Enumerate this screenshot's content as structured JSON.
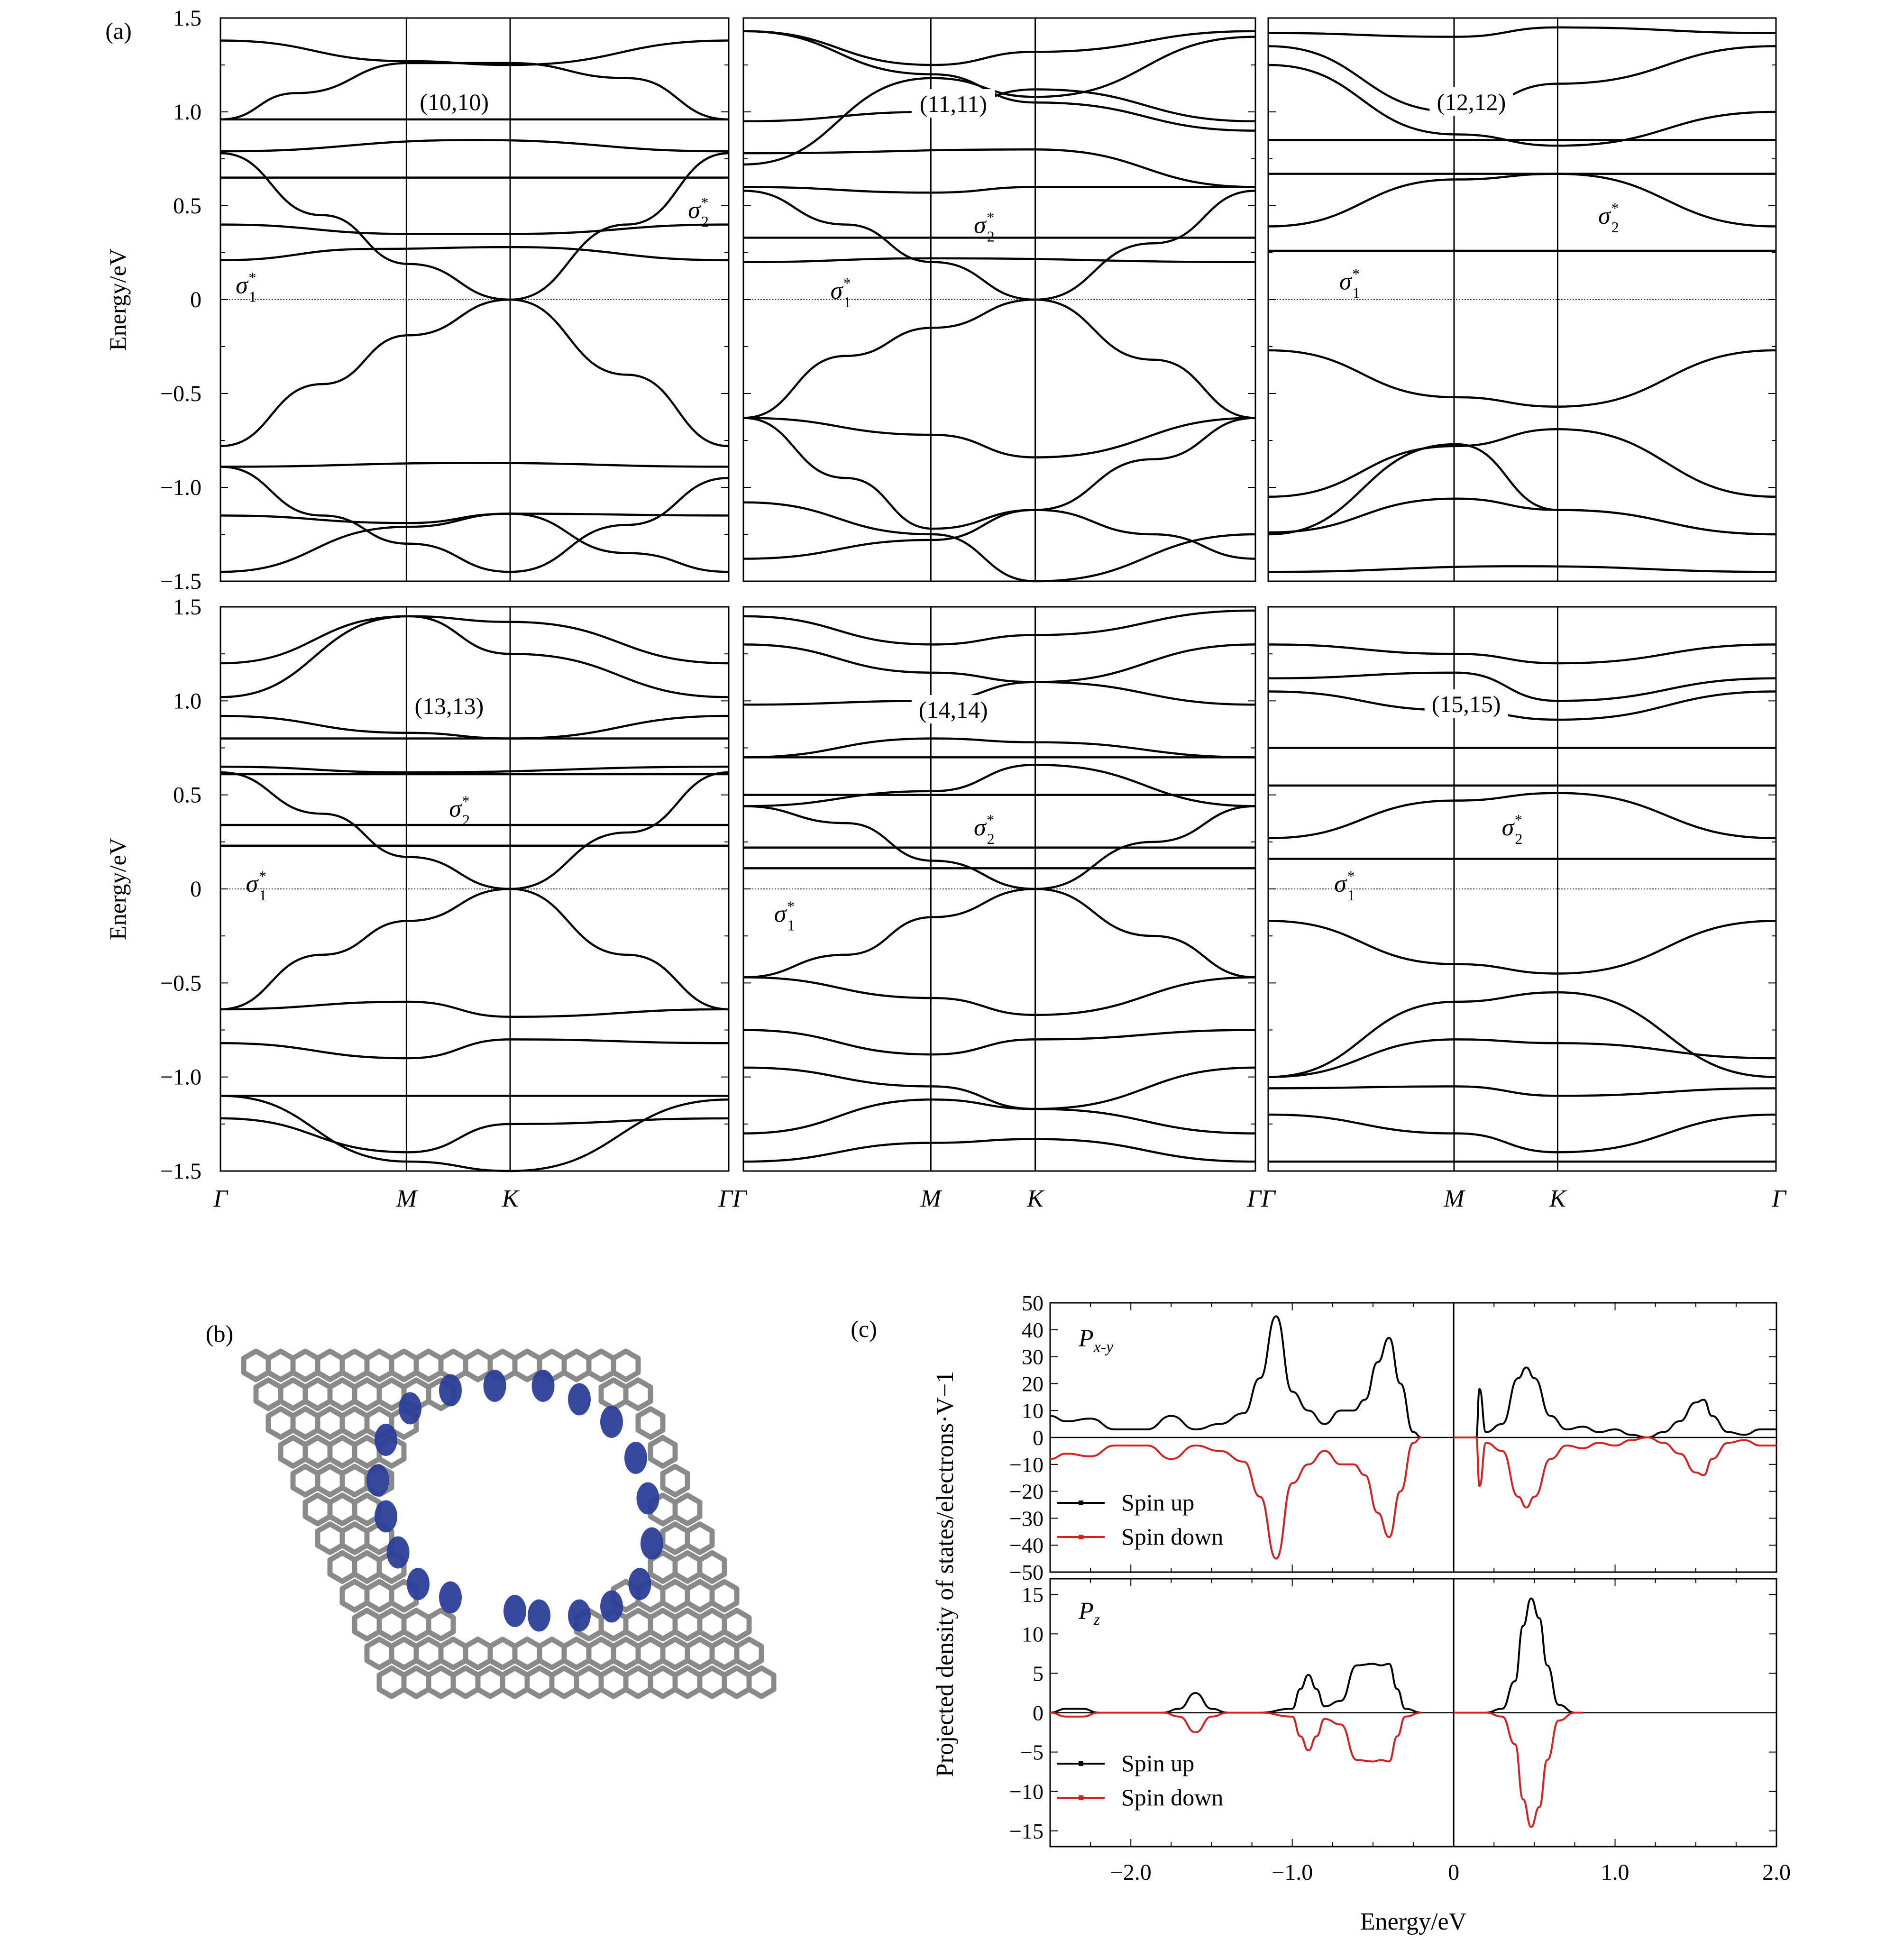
{
  "panel_a": {
    "label": "(a)",
    "ylabel": "Energy/eV",
    "y_ticks": [
      "1.5",
      "1.0",
      "0.5",
      "0",
      "−0.5",
      "−1.0",
      "−1.5"
    ],
    "k_labels": [
      "Γ",
      "M",
      "K",
      "Γ"
    ],
    "sigma1_label": "σ",
    "sigma1_sub": "1",
    "sigma2_label": "σ",
    "sigma2_sub": "2",
    "star": "*",
    "subplots": [
      {
        "label": "(10,10)"
      },
      {
        "label": "(11,11)"
      },
      {
        "label": "(12,12)"
      },
      {
        "label": "(13,13)"
      },
      {
        "label": "(14,14)"
      },
      {
        "label": "(15,15)"
      }
    ]
  },
  "panel_b": {
    "label": "(b)"
  },
  "panel_c": {
    "label": "(c)",
    "ylabel": "Projected density of states/electrons·V−1",
    "xlabel": "Energy/eV",
    "x_ticks": [
      "−2.0",
      "−1.0",
      "0",
      "1.0",
      "2.0"
    ],
    "top": {
      "title": "Px-y",
      "y_ticks": [
        "50",
        "40",
        "30",
        "20",
        "10",
        "0",
        "−10",
        "−20",
        "−30",
        "−40",
        "−50"
      ],
      "legend": [
        "Spin up",
        "Spin down"
      ]
    },
    "bottom": {
      "title": "Pz",
      "y_ticks": [
        "15",
        "10",
        "5",
        "0",
        "−5",
        "−10",
        "−15"
      ],
      "legend": [
        "Spin up",
        "Spin down"
      ]
    }
  },
  "colors": {
    "spin_up": "#000000",
    "spin_down": "#d42020",
    "orbital": "#2b3f9a"
  },
  "chart_data": [
    {
      "type": "line",
      "title": "(c) Px-y",
      "xlabel": "Energy/eV",
      "ylabel": "Projected density of states/electrons·V−1",
      "xlim": [
        -2.5,
        2.0
      ],
      "ylim": [
        -50,
        50
      ],
      "series": [
        {
          "name": "Spin up",
          "x": [
            -2.5,
            -2.4,
            -2.25,
            -2.1,
            -1.9,
            -1.75,
            -1.6,
            -1.45,
            -1.3,
            -1.2,
            -1.1,
            -1.0,
            -0.9,
            -0.8,
            -0.7,
            -0.62,
            -0.55,
            -0.47,
            -0.4,
            -0.33,
            -0.25,
            -0.2
          ],
          "values": [
            8,
            6,
            7,
            3,
            3,
            8,
            3,
            5,
            9,
            22,
            45,
            17,
            10,
            5,
            10,
            10,
            14,
            28,
            37,
            20,
            2,
            0
          ]
        },
        {
          "name": "Spin down",
          "x": [
            -2.5,
            -2.4,
            -2.25,
            -2.1,
            -1.9,
            -1.75,
            -1.6,
            -1.45,
            -1.3,
            -1.2,
            -1.1,
            -1.0,
            -0.9,
            -0.8,
            -0.7,
            -0.62,
            -0.55,
            -0.47,
            -0.4,
            -0.33,
            -0.25,
            -0.2
          ],
          "values": [
            -8,
            -6,
            -7,
            -3,
            -3,
            -8,
            -3,
            -5,
            -9,
            -22,
            -45,
            -17,
            -10,
            -5,
            -10,
            -10,
            -14,
            -28,
            -37,
            -20,
            -2,
            0
          ]
        },
        {
          "name": "Spin up",
          "x": [
            0.0,
            0.05,
            0.14,
            0.16,
            0.2,
            0.3,
            0.4,
            0.45,
            0.5,
            0.6,
            0.7,
            0.8,
            0.9,
            1.0,
            1.1,
            1.2,
            1.3,
            1.4,
            1.5,
            1.55,
            1.6,
            1.7,
            1.8,
            1.9,
            2.0
          ],
          "values": [
            0,
            0,
            0,
            18,
            2,
            5,
            22,
            26,
            22,
            8,
            3,
            4,
            2,
            3,
            1,
            0,
            2,
            6,
            13,
            14,
            8,
            2,
            1,
            3,
            3
          ]
        },
        {
          "name": "Spin down",
          "x": [
            0.0,
            0.05,
            0.14,
            0.16,
            0.2,
            0.3,
            0.4,
            0.45,
            0.5,
            0.6,
            0.7,
            0.8,
            0.9,
            1.0,
            1.1,
            1.2,
            1.3,
            1.4,
            1.5,
            1.55,
            1.6,
            1.7,
            1.8,
            1.9,
            2.0
          ],
          "values": [
            0,
            0,
            0,
            -18,
            -2,
            -5,
            -22,
            -26,
            -22,
            -8,
            -3,
            -4,
            -2,
            -3,
            -1,
            0,
            -2,
            -6,
            -13,
            -14,
            -8,
            -2,
            -1,
            -3,
            -3
          ]
        }
      ]
    },
    {
      "type": "line",
      "title": "(c) Pz",
      "xlabel": "Energy/eV",
      "ylabel": "Projected density of states/electrons·V−1",
      "xlim": [
        -2.5,
        2.0
      ],
      "ylim": [
        -17,
        17
      ],
      "series": [
        {
          "name": "Spin up",
          "x": [
            -2.5,
            -2.4,
            -2.3,
            -2.2,
            -2.0,
            -1.8,
            -1.7,
            -1.6,
            -1.5,
            -1.4,
            -1.2,
            -1.0,
            -0.95,
            -0.9,
            -0.85,
            -0.8,
            -0.7,
            -0.6,
            -0.5,
            -0.45,
            -0.4,
            -0.35,
            -0.3,
            -0.2
          ],
          "values": [
            0,
            0.5,
            0.5,
            0,
            0,
            0,
            0.5,
            2.5,
            0.5,
            0,
            0,
            0.5,
            3,
            4.8,
            3,
            0.8,
            1.5,
            6,
            6.2,
            6,
            6.2,
            3,
            0.5,
            0
          ]
        },
        {
          "name": "Spin down",
          "x": [
            -2.5,
            -2.4,
            -2.3,
            -2.2,
            -2.0,
            -1.8,
            -1.7,
            -1.6,
            -1.5,
            -1.4,
            -1.2,
            -1.0,
            -0.95,
            -0.9,
            -0.85,
            -0.8,
            -0.7,
            -0.6,
            -0.5,
            -0.45,
            -0.4,
            -0.35,
            -0.3,
            -0.2
          ],
          "values": [
            0,
            -0.5,
            -0.5,
            0,
            0,
            0,
            -0.5,
            -2.5,
            -0.5,
            0,
            0,
            -0.5,
            -3,
            -4.8,
            -3,
            -0.8,
            -1.5,
            -6,
            -6.2,
            -6,
            -6.2,
            -3,
            -0.5,
            0
          ]
        },
        {
          "name": "Spin up",
          "x": [
            0.0,
            0.2,
            0.3,
            0.38,
            0.43,
            0.48,
            0.53,
            0.58,
            0.65,
            0.75,
            0.8
          ],
          "values": [
            0,
            0,
            0.5,
            4,
            11,
            14.5,
            12,
            6,
            1,
            0,
            0
          ]
        },
        {
          "name": "Spin down",
          "x": [
            0.0,
            0.2,
            0.3,
            0.38,
            0.43,
            0.48,
            0.53,
            0.58,
            0.65,
            0.75,
            0.8
          ],
          "values": [
            0,
            0,
            -0.5,
            -4,
            -11,
            -14.5,
            -12,
            -6,
            -1,
            0,
            0
          ]
        }
      ]
    }
  ]
}
